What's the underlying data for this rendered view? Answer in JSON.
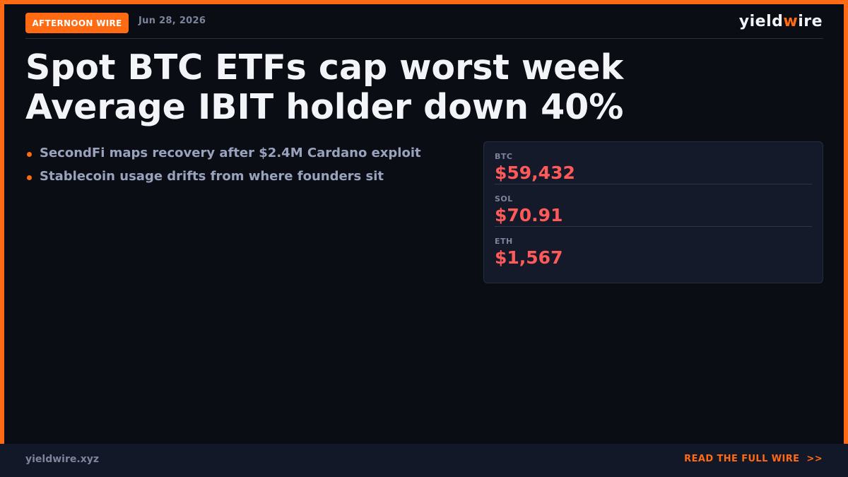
{
  "header": {
    "badge": "AFTERNOON WIRE",
    "date": "Jun 28, 2026",
    "logo": {
      "part1": "yield",
      "accent": "w",
      "part2": "ire"
    }
  },
  "headline": {
    "line1": "Spot BTC ETFs cap worst week",
    "line2": "Average IBIT holder down 40%"
  },
  "bullets": [
    "SecondFi maps recovery after $2.4M Cardano exploit",
    "Stablecoin usage drifts from where founders sit"
  ],
  "prices": [
    {
      "ticker": "BTC",
      "value": "$59,432"
    },
    {
      "ticker": "SOL",
      "value": "$70.91"
    },
    {
      "ticker": "ETH",
      "value": "$1,567"
    }
  ],
  "footer": {
    "site": "yieldwire.xyz",
    "cta": "READ THE FULL WIRE",
    "cta_arrow": ">>"
  },
  "colors": {
    "accent": "#ff6a13",
    "background": "#0a0d14",
    "price_down": "#ff5a5a"
  }
}
